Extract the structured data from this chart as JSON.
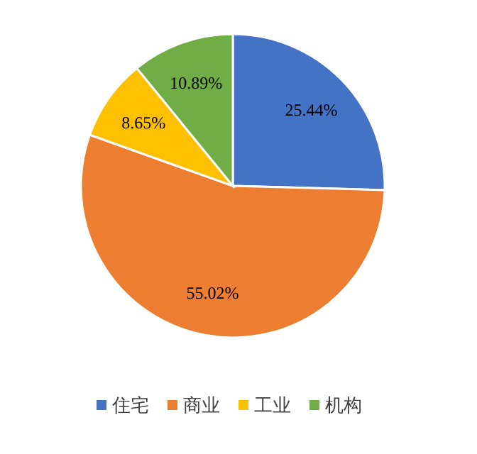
{
  "chart_data": {
    "type": "pie",
    "categories": [
      "住宅",
      "商业",
      "工业",
      "机构"
    ],
    "values": [
      25.44,
      55.02,
      8.65,
      10.89
    ],
    "colors": [
      "#4472c4",
      "#ed7d31",
      "#ffc000",
      "#70ad47"
    ],
    "value_labels": [
      "25.44%",
      "55.02%",
      "8.65%",
      "10.89%"
    ],
    "legend": "bottom"
  }
}
